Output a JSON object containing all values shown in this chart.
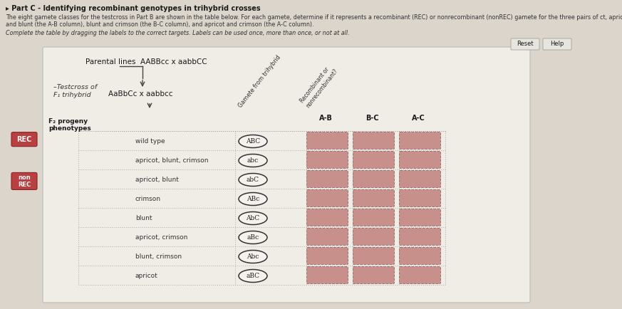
{
  "title": "Part C - Identifying recombinant genotypes in trihybrid crosses",
  "desc1": "The eight gamete classes for the testcross in Part B are shown in the table below. For each gamete, determine if it represents a recombinant (REC) or nonrecombinant (nonREC) gamete for the three pairs of ct, apricot",
  "desc2": "and blunt (the A-B column), blunt and crimson (the B-C column), and apricot and crimson (the A-C column).",
  "desc3": "Complete the table by dragging the labels to the correct targets. Labels can be used once, more than once, or not at all.",
  "parental": "AABBcc x aabbCC",
  "testcross_line1": "–Testcross of",
  "testcross_line2": "F₁ trihybrid",
  "testcross_cross": "AaBbCc x aabbcc",
  "col_gamete": "Gamete from trihybrid",
  "col_rec": "Recombinant or\nnonrecombinant?",
  "col_ab": "A-B",
  "col_bc": "B-C",
  "col_ac": "A-C",
  "f2_line1": "F₂ progeny",
  "f2_line2": "phenotypes",
  "rows": [
    {
      "phenotype": "wild type",
      "gamete": "ABC"
    },
    {
      "phenotype": "apricot, blunt, crimson",
      "gamete": "abc"
    },
    {
      "phenotype": "apricot, blunt",
      "gamete": "abC"
    },
    {
      "phenotype": "crimson",
      "gamete": "ABc"
    },
    {
      "phenotype": "blunt",
      "gamete": "AbC"
    },
    {
      "phenotype": "apricot, crimson",
      "gamete": "aBc"
    },
    {
      "phenotype": "blunt, crimson",
      "gamete": "Abc"
    },
    {
      "phenotype": "apricot",
      "gamete": "aBC"
    }
  ],
  "page_bg": "#dbd5cc",
  "box_bg": "#f0ece6",
  "cell_fill": "#c8908a",
  "cell_edge": "#a07070",
  "oval_fill": "#f5f2ee",
  "oval_edge": "#333333",
  "rec_fill": "#b84040",
  "rec_edge": "#8a2020",
  "btn_fill": "#e8e4de",
  "btn_edge": "#aaaaaa",
  "text_dark": "#1a1a1a",
  "text_mid": "#333333",
  "text_light": "#555555",
  "dot_color": "#999999",
  "table_inner_bg": "#f8f5f2"
}
